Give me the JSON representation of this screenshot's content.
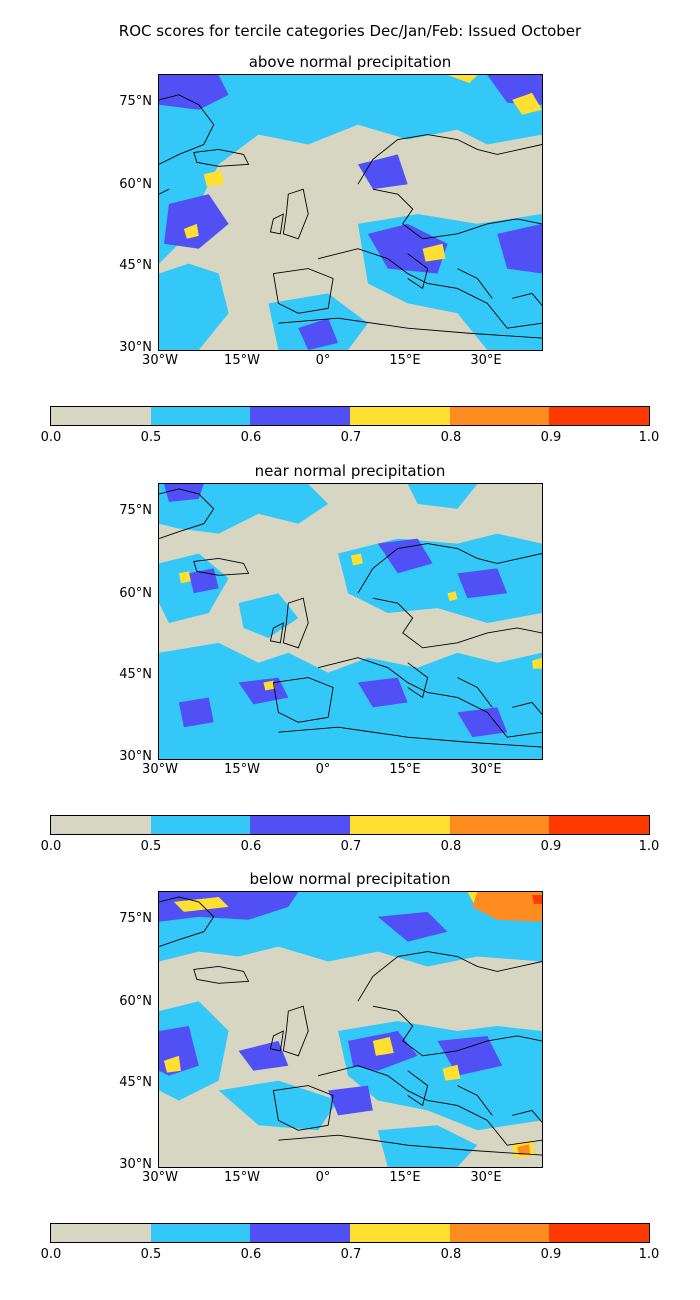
{
  "suptitle": "ROC scores for tercile categories Dec/Jan/Feb: Issued October",
  "colors": {
    "land_sea_low": "#d6d6c3",
    "c05": "#34c8f8",
    "c06": "#5050f5",
    "c07": "#ffe030",
    "c08": "#ff8c20",
    "c09": "#ff3a00",
    "coast": "#000000"
  },
  "colorbar": {
    "ticks": [
      "0.0",
      "0.5",
      "0.6",
      "0.7",
      "0.8",
      "0.9",
      "1.0"
    ],
    "colors": [
      "#d6d6c3",
      "#34c8f8",
      "#5050f5",
      "#ffe030",
      "#ff8c20",
      "#ff3a00"
    ]
  },
  "lat_labels": [
    "75°N",
    "60°N",
    "45°N",
    "30°N"
  ],
  "lon_labels": [
    "30°W",
    "15°W",
    "0°",
    "15°E",
    "30°E"
  ],
  "panels": [
    {
      "title": "above normal precipitation"
    },
    {
      "title": "near normal precipitation"
    },
    {
      "title": "below normal precipitation"
    }
  ]
}
